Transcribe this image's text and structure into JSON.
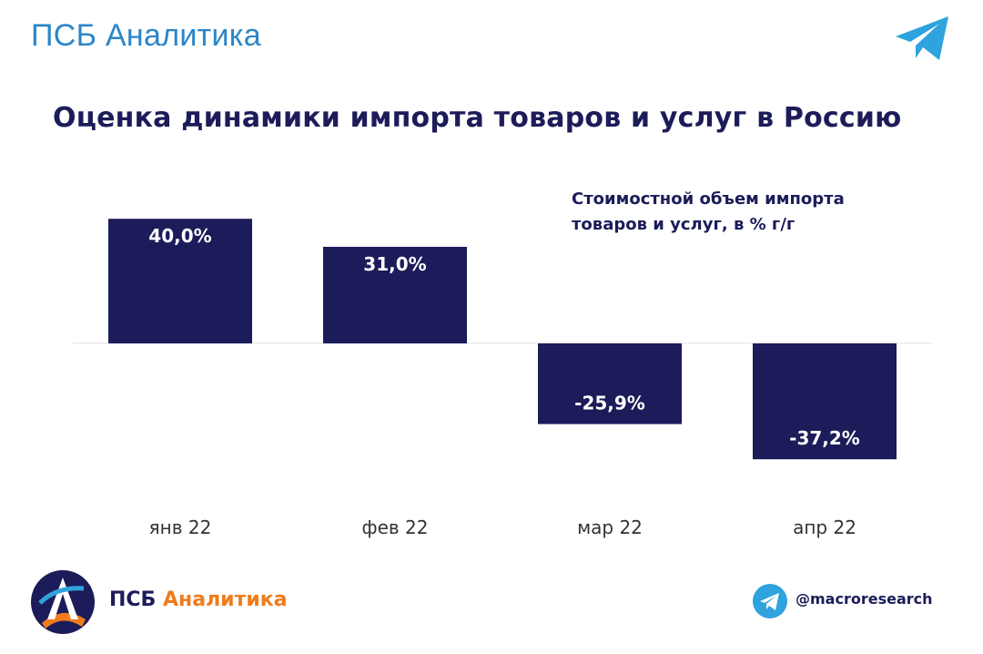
{
  "header": {
    "brand": "ПСБ Аналитика"
  },
  "title": "Оценка динамики импорта товаров и услуг в Россию",
  "chart_data": {
    "type": "bar",
    "title": "Оценка динамики импорта товаров и услуг в Россию",
    "legend_note": "Стоимостной объем импорта товаров и услуг, в % г/г",
    "legend_note_lines": [
      "Стоимостной объем импорта",
      "товаров и услуг, в % г/г"
    ],
    "categories": [
      "янв 22",
      "фев 22",
      "мар 22",
      "апр 22"
    ],
    "values": [
      40.0,
      31.0,
      -25.9,
      -37.2
    ],
    "value_labels": [
      "40,0%",
      "31,0%",
      "-25,9%",
      "-37,2%"
    ],
    "xlabel": "",
    "ylabel": "",
    "ylim": [
      -50,
      50
    ],
    "grid": false,
    "bar_color": "#1c1c5a"
  },
  "footer": {
    "brand_part1": "ПСБ ",
    "brand_part2": "Аналитика",
    "handle": "@macroresearch"
  },
  "colors": {
    "accent": "#2b86c8",
    "navy": "#1c1c5a",
    "orange": "#f07c1c",
    "telegram": "#2ea3dd"
  },
  "icons": {
    "top": "telegram-icon",
    "footer_logo": "psb-logo-icon",
    "footer": "telegram-icon"
  }
}
